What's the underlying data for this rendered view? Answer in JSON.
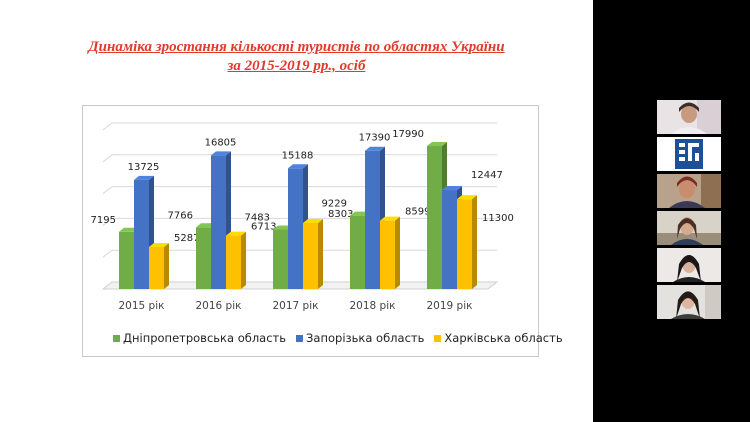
{
  "slide": {
    "title_line1": "Динаміка зростання кількості туристів по областях України",
    "title_line2": "за 2015-2019 рр., осіб"
  },
  "chart_data": {
    "type": "bar",
    "categories": [
      "2015 рік",
      "2016 рік",
      "2017 рік",
      "2018 рік",
      "2019 рік"
    ],
    "series": [
      {
        "name": "Дніпропетровська  область",
        "values": [
          7195,
          7766,
          7483,
          9229,
          17990
        ],
        "color": "#70ad47"
      },
      {
        "name": "Запорізька область",
        "values": [
          13725,
          16805,
          15188,
          17390,
          12447
        ],
        "color": "#4472c4"
      },
      {
        "name": "Харківська область",
        "values": [
          5287,
          6713,
          8303,
          8599,
          11300
        ],
        "color": "#ffc000"
      }
    ],
    "ylim": [
      0,
      20000
    ],
    "grid": true,
    "legend_position": "bottom",
    "style": "3d"
  },
  "participants": [
    {
      "name": "participant-1",
      "kind": "video"
    },
    {
      "name": "institution-logo",
      "kind": "logo"
    },
    {
      "name": "participant-2",
      "kind": "video"
    },
    {
      "name": "participant-3",
      "kind": "video"
    },
    {
      "name": "participant-4",
      "kind": "video"
    },
    {
      "name": "participant-5",
      "kind": "video"
    }
  ]
}
